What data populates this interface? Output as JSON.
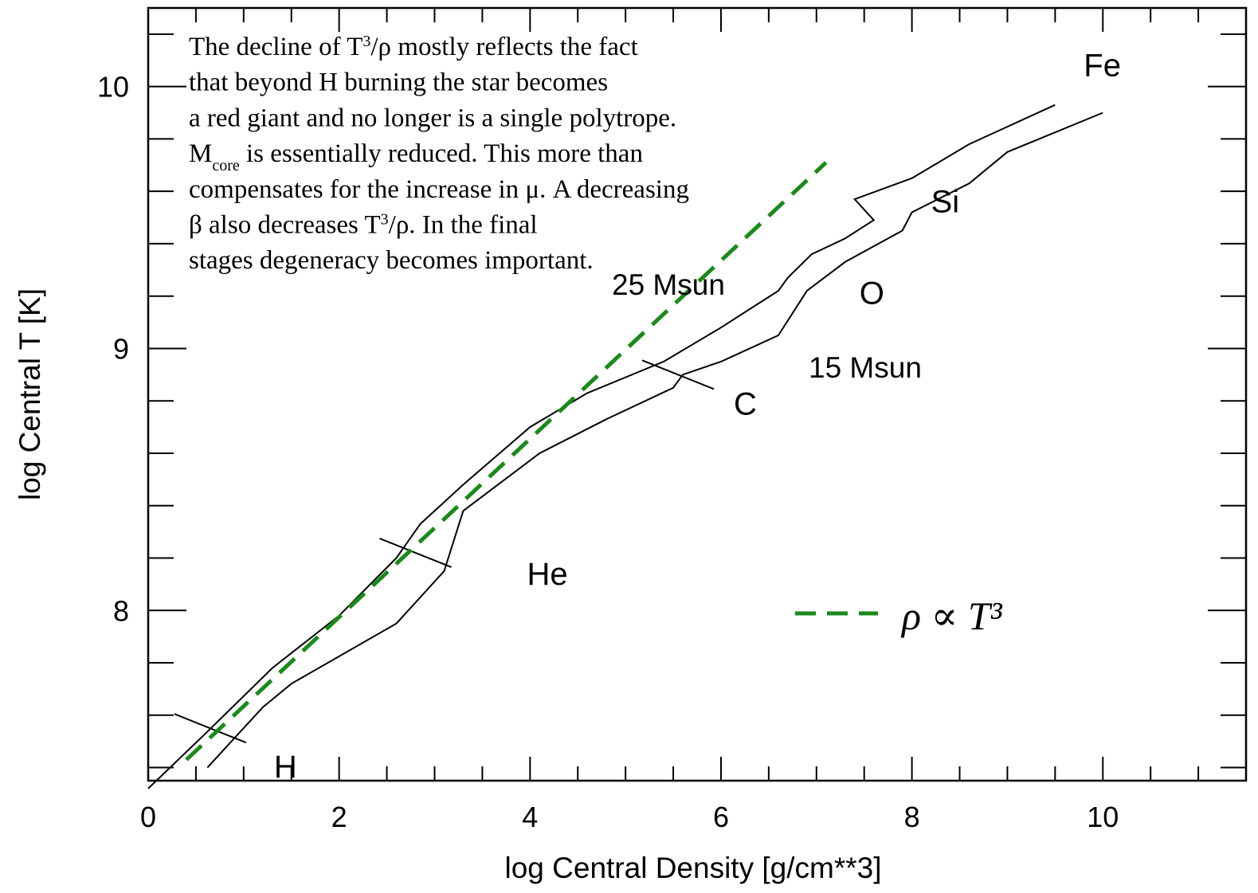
{
  "chart_data": {
    "type": "line",
    "title": "",
    "xlabel": "log Central Density [g/cm**3]",
    "ylabel": "log Central T [K]",
    "xlim": [
      0,
      11.5
    ],
    "ylim": [
      7.35,
      10.3
    ],
    "x_ticks": [
      "0",
      "2",
      "4",
      "6",
      "8",
      "10"
    ],
    "y_ticks": [
      "8",
      "9",
      "10"
    ],
    "grid": false,
    "colors": {
      "axes": "#000000",
      "fit_line": "#1a8a1a"
    },
    "series": [
      {
        "name": "25 Msun",
        "x": [
          0.0,
          0.6,
          1.3,
          2.0,
          2.6,
          2.85,
          3.3,
          4.0,
          4.6,
          5.4,
          6.0,
          6.3,
          6.6,
          6.7,
          6.95,
          7.3,
          7.6,
          7.4,
          8.0,
          8.6,
          9.5
        ],
        "y": [
          7.32,
          7.53,
          7.78,
          7.98,
          8.2,
          8.33,
          8.48,
          8.7,
          8.83,
          8.95,
          9.08,
          9.15,
          9.22,
          9.27,
          9.36,
          9.42,
          9.49,
          9.57,
          9.65,
          9.78,
          9.93
        ]
      },
      {
        "name": "15 Msun",
        "x": [
          0.62,
          1.2,
          1.5,
          2.6,
          3.1,
          3.3,
          4.1,
          4.8,
          5.5,
          5.6,
          6.0,
          6.6,
          6.9,
          7.3,
          7.9,
          8.0,
          8.6,
          9.0,
          10.0
        ],
        "y": [
          7.4,
          7.63,
          7.72,
          7.95,
          8.15,
          8.38,
          8.6,
          8.73,
          8.85,
          8.9,
          8.95,
          9.05,
          9.22,
          9.33,
          9.45,
          9.52,
          9.63,
          9.75,
          9.9
        ]
      }
    ],
    "fit_line": {
      "label": "ρ ∝ T³",
      "style": "dashed",
      "x": [
        0.4,
        7.1
      ],
      "y": [
        7.43,
        9.71
      ]
    },
    "burning_markers": [
      {
        "label": "H",
        "x": 0.65,
        "y": 7.55
      },
      {
        "label": "He",
        "x": 2.8,
        "y": 8.22
      },
      {
        "label": "C",
        "x": 5.55,
        "y": 8.9
      },
      {
        "label": "O",
        "x": 7.45,
        "y": 9.17
      },
      {
        "label": "Si",
        "x": 8.2,
        "y": 9.52
      },
      {
        "label": "Fe",
        "x": 9.8,
        "y": 10.04
      }
    ],
    "mass_labels": [
      "25 Msun",
      "15 Msun"
    ],
    "annotation": {
      "lines": [
        {
          "a": "The decline of T",
          "sup": "3",
          "b": "/ρ mostly  reflects the fact"
        },
        {
          "a": "that beyond H burning the star becomes"
        },
        {
          "a": "a red giant and no longer is a single polytrope."
        },
        {
          "a": "M",
          "sub": "core",
          "b": " is essentially reduced. This more than"
        },
        {
          "a": "compensates for the increase in μ. A decreasing"
        },
        {
          "a": "β also decreases  T",
          "sup": "3",
          "b": "/ρ. In the final"
        },
        {
          "a": "stages degeneracy becomes important."
        }
      ]
    }
  }
}
